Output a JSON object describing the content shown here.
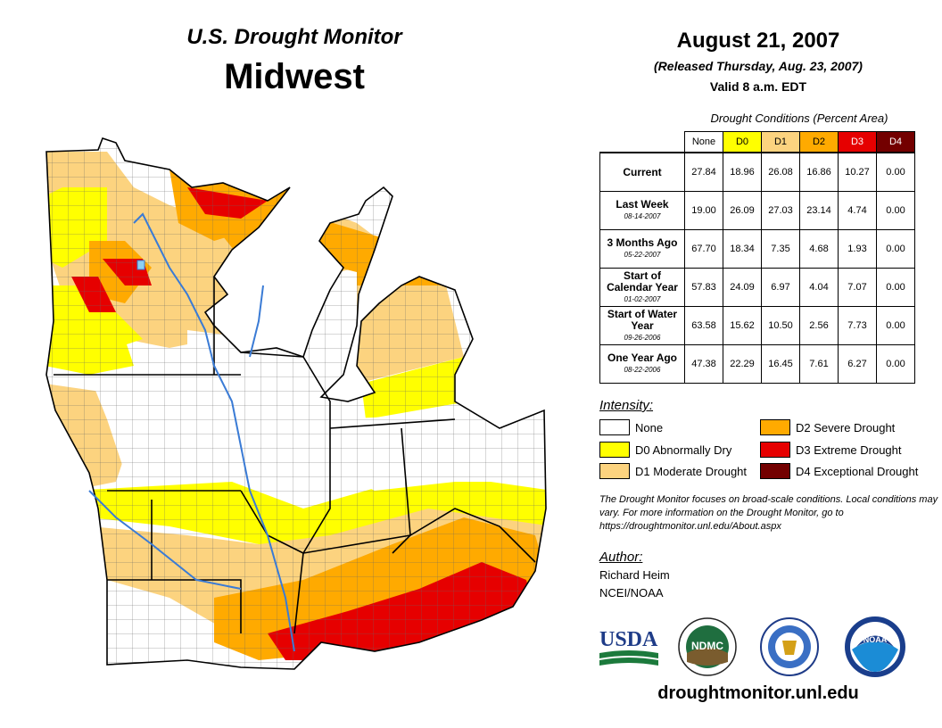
{
  "header": {
    "monitor_title": "U.S. Drought Monitor",
    "region": "Midwest",
    "date": "August 21, 2007",
    "released": "(Released Thursday, Aug. 23, 2007)",
    "valid": "Valid 8 a.m. EDT"
  },
  "table": {
    "caption": "Drought Conditions (Percent Area)",
    "columns": [
      "None",
      "D0",
      "D1",
      "D2",
      "D3",
      "D4"
    ],
    "column_colors": [
      "#ffffff",
      "#ffff00",
      "#fcd37f",
      "#ffaa00",
      "#e60000",
      "#730000"
    ],
    "rows": [
      {
        "label": "Current",
        "sub": "",
        "values": [
          "27.84",
          "18.96",
          "26.08",
          "16.86",
          "10.27",
          "0.00"
        ]
      },
      {
        "label": "Last Week",
        "sub": "08-14-2007",
        "values": [
          "19.00",
          "26.09",
          "27.03",
          "23.14",
          "4.74",
          "0.00"
        ]
      },
      {
        "label": "3 Months Ago",
        "sub": "05-22-2007",
        "values": [
          "67.70",
          "18.34",
          "7.35",
          "4.68",
          "1.93",
          "0.00"
        ]
      },
      {
        "label": "Start of Calendar Year",
        "sub": "01-02-2007",
        "values": [
          "57.83",
          "24.09",
          "6.97",
          "4.04",
          "7.07",
          "0.00"
        ]
      },
      {
        "label": "Start of Water Year",
        "sub": "09-26-2006",
        "values": [
          "63.58",
          "15.62",
          "10.50",
          "2.56",
          "7.73",
          "0.00"
        ]
      },
      {
        "label": "One Year Ago",
        "sub": "08-22-2006",
        "values": [
          "47.38",
          "22.29",
          "16.45",
          "7.61",
          "6.27",
          "0.00"
        ]
      }
    ]
  },
  "legend": {
    "heading": "Intensity:",
    "items": [
      {
        "label": "None",
        "color": "#ffffff"
      },
      {
        "label": "D0 Abnormally Dry",
        "color": "#ffff00"
      },
      {
        "label": "D1 Moderate Drought",
        "color": "#fcd37f"
      },
      {
        "label": "D2 Severe Drought",
        "color": "#ffaa00"
      },
      {
        "label": "D3 Extreme Drought",
        "color": "#e60000"
      },
      {
        "label": "D4 Exceptional Drought",
        "color": "#730000"
      }
    ]
  },
  "note": "The Drought Monitor focuses on broad-scale conditions. Local conditions may vary. For more information on the Drought Monitor, go to https://droughtmonitor.unl.edu/About.aspx",
  "author": {
    "heading": "Author:",
    "name": "Richard Heim",
    "org": "NCEI/NOAA"
  },
  "logos": {
    "usda": "USDA",
    "ndmc": "NDMC",
    "noaa": "NOAA"
  },
  "website": "droughtmonitor.unl.edu"
}
